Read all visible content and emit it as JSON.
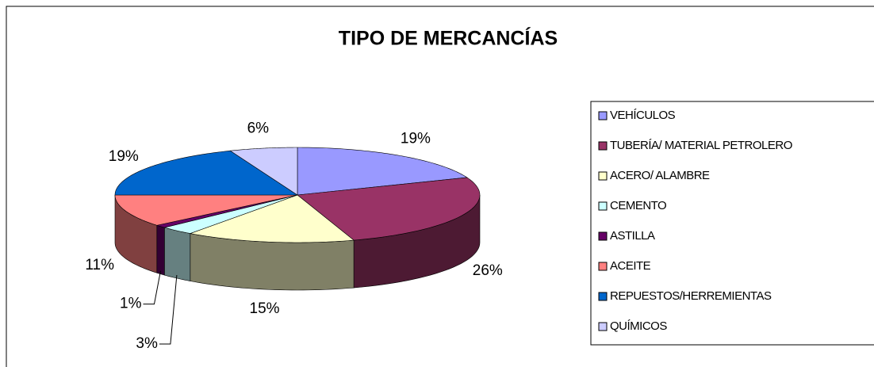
{
  "chart_data": {
    "type": "pie3d",
    "title": "TIPO DE MERCANCÍAS",
    "categories": [
      "VEHÍCULOS",
      "TUBERÍA/ MATERIAL PETROLERO",
      "ACERO/ ALAMBRE",
      "CEMENTO",
      "ASTILLA",
      "ACEITE",
      "REPUESTOS/HERREMIENTAS",
      "QUÍMICOS"
    ],
    "values": [
      19,
      26,
      15,
      3,
      1,
      11,
      19,
      6
    ],
    "value_labels": [
      "19%",
      "26%",
      "15%",
      "3%",
      "1%",
      "11%",
      "19%",
      "6%"
    ],
    "colors": [
      "#9999ff",
      "#993366",
      "#ffffcc",
      "#ccffff",
      "#660066",
      "#ff8080",
      "#0066cc",
      "#ccccff"
    ],
    "legend": "right"
  }
}
